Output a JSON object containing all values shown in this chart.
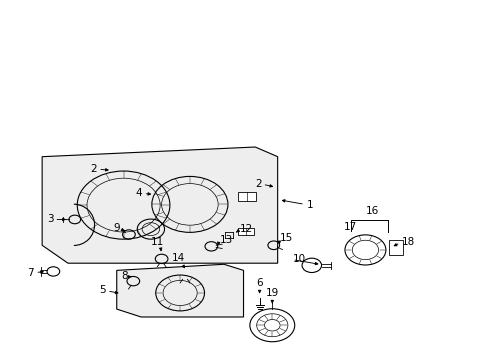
{
  "bg_color": "#ffffff",
  "fg_color": "#000000",
  "fig_width": 4.89,
  "fig_height": 3.6,
  "dpi": 100,
  "fill_color": "#eeeeee",
  "lw_main": 0.8,
  "lw_thin": 0.5,
  "label_fontsize": 7.5
}
